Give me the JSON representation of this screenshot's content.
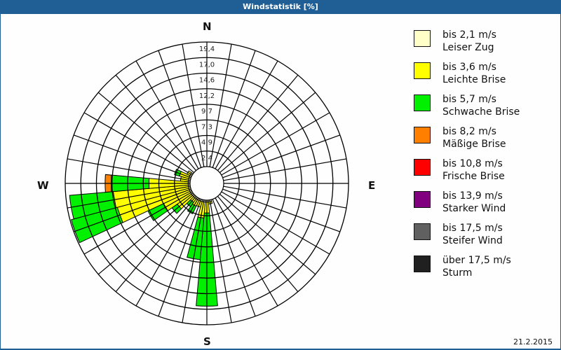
{
  "window": {
    "title": "Windstatistik [%]"
  },
  "compass": {
    "n": "N",
    "e": "E",
    "s": "S",
    "w": "W"
  },
  "footer": {
    "date": "21.2.2015"
  },
  "legend": [
    {
      "range": "bis 2,1 m/s",
      "name": "Leiser Zug",
      "color": "#ffffc8"
    },
    {
      "range": "bis 3,6 m/s",
      "name": "Leichte Brise",
      "color": "#ffff00"
    },
    {
      "range": "bis 5,7 m/s",
      "name": "Schwache Brise",
      "color": "#00f000"
    },
    {
      "range": "bis 8,2 m/s",
      "name": "Mäßige Brise",
      "color": "#ff8000"
    },
    {
      "range": "bis 10,8 m/s",
      "name": "Frische Brise",
      "color": "#ff0000"
    },
    {
      "range": "bis 13,9 m/s",
      "name": "Starker Wind",
      "color": "#800080"
    },
    {
      "range": "bis 17,5 m/s",
      "name": "Steifer Wind",
      "color": "#606060"
    },
    {
      "range": "über 17,5 m/s",
      "name": "Sturm",
      "color": "#202020"
    }
  ],
  "chart_data": {
    "type": "wind-rose",
    "title": "Windstatistik [%]",
    "radial_ticks": [
      "2,4",
      "4,9",
      "7,3",
      "9,7",
      "12,2",
      "14,6",
      "17,0",
      "19,4"
    ],
    "radial_max": 19.4,
    "sector_width_deg": 10,
    "legend_position": "right",
    "series_names": [
      "bis 2,1 m/s",
      "bis 3,6 m/s",
      "bis 5,7 m/s",
      "bis 8,2 m/s",
      "bis 10,8 m/s",
      "bis 13,9 m/s",
      "bis 17,5 m/s",
      "über 17,5 m/s"
    ],
    "sectors": [
      {
        "dir": 180,
        "cumulative": [
          0.3,
          2.0,
          16.5
        ]
      },
      {
        "dir": 190,
        "cumulative": [
          0.3,
          2.8,
          9.3
        ]
      },
      {
        "dir": 200,
        "cumulative": [
          0.3,
          1.2
        ]
      },
      {
        "dir": 210,
        "cumulative": [
          0.3,
          1.3,
          2.6
        ]
      },
      {
        "dir": 220,
        "cumulative": [
          0.3,
          1.0,
          1.8
        ]
      },
      {
        "dir": 230,
        "cumulative": [
          0.3,
          3.0,
          4.0
        ]
      },
      {
        "dir": 240,
        "cumulative": [
          0.3,
          4.8,
          7.5
        ]
      },
      {
        "dir": 250,
        "cumulative": [
          0.3,
          11.8,
          19.2
        ]
      },
      {
        "dir": 260,
        "cumulative": [
          0.3,
          12.0,
          18.8
        ]
      },
      {
        "dir": 270,
        "cumulative": [
          0.3,
          6.4,
          12.3,
          13.2
        ]
      },
      {
        "dir": 280,
        "cumulative": [
          0.3,
          1.5
        ]
      },
      {
        "dir": 290,
        "cumulative": [
          0.3,
          1.8,
          2.6
        ]
      },
      {
        "dir": 300,
        "cumulative": [
          0.3,
          0.8
        ]
      },
      {
        "dir": 170,
        "cumulative": [
          0.3,
          0.6
        ]
      }
    ]
  }
}
